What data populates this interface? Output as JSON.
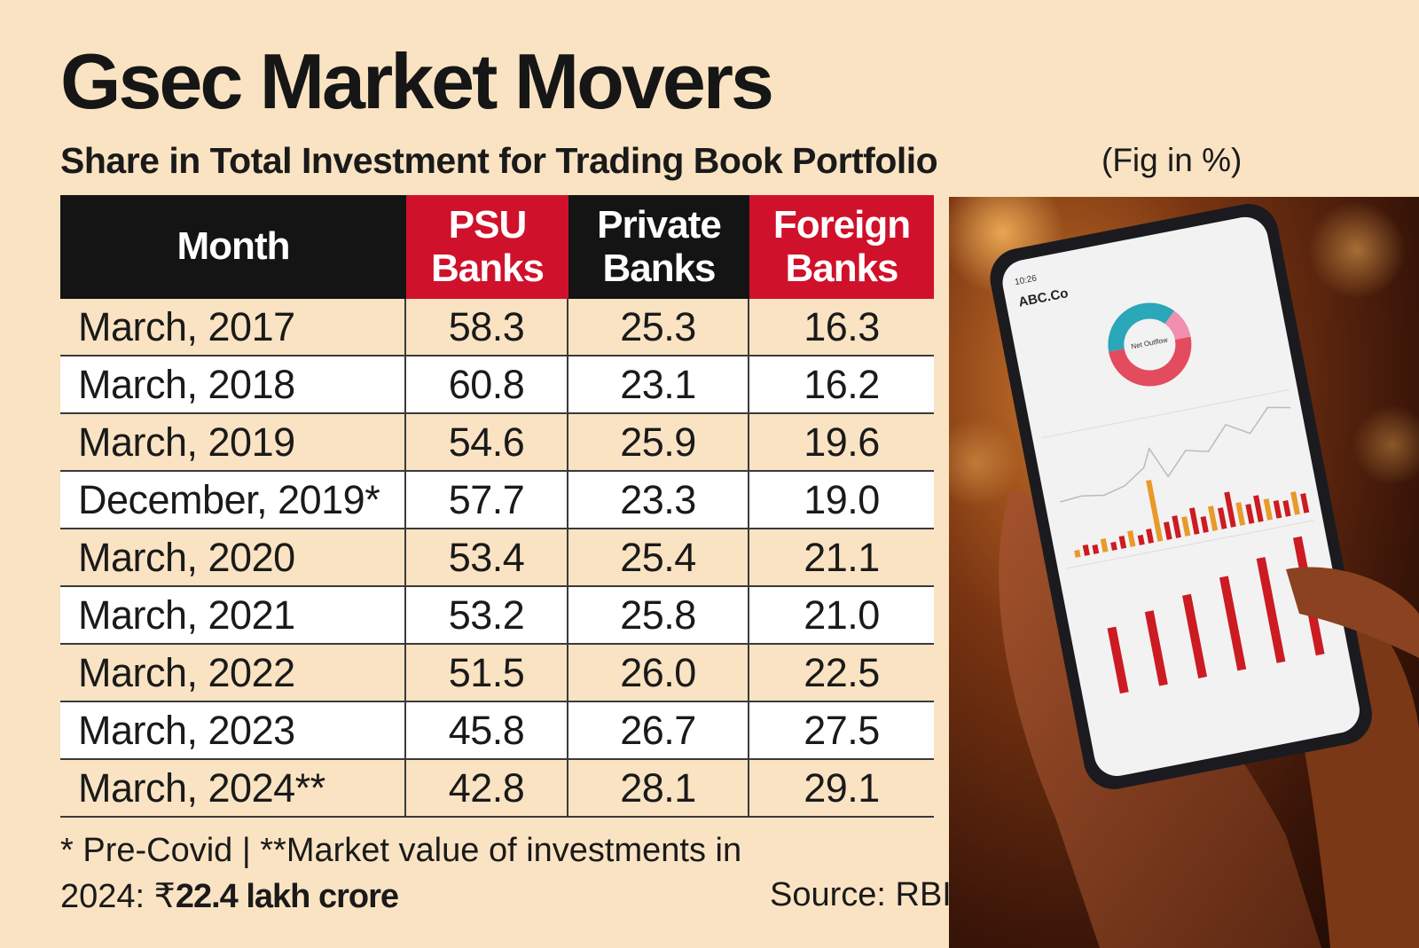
{
  "title": "Gsec Market Movers",
  "subtitle": "Share in Total Investment for Trading Book Portfolio",
  "unit_note": "(Fig in %)",
  "table": {
    "headers": {
      "month": "Month",
      "psu_line1": "PSU",
      "psu_line2": "Banks",
      "private_line1": "Private",
      "private_line2": "Banks",
      "foreign_line1": "Foreign",
      "foreign_line2": "Banks"
    },
    "rows": [
      {
        "month": "March, 2017",
        "psu": "58.3",
        "private": "25.3",
        "foreign": "16.3"
      },
      {
        "month": "March, 2018",
        "psu": "60.8",
        "private": "23.1",
        "foreign": "16.2"
      },
      {
        "month": "March, 2019",
        "psu": "54.6",
        "private": "25.9",
        "foreign": "19.6"
      },
      {
        "month": "December, 2019*",
        "psu": "57.7",
        "private": "23.3",
        "foreign": "19.0"
      },
      {
        "month": "March, 2020",
        "psu": "53.4",
        "private": "25.4",
        "foreign": "21.1"
      },
      {
        "month": "March, 2021",
        "psu": "53.2",
        "private": "25.8",
        "foreign": "21.0"
      },
      {
        "month": "March, 2022",
        "psu": "51.5",
        "private": "26.0",
        "foreign": "22.5"
      },
      {
        "month": "March, 2023",
        "psu": "45.8",
        "private": "26.7",
        "foreign": "27.5"
      },
      {
        "month": "March, 2024**",
        "psu": "42.8",
        "private": "28.1",
        "foreign": "29.1"
      }
    ]
  },
  "footnote": {
    "line1": "* Pre-Covid | **Market value of investments in",
    "line2_prefix": "2024: ₹",
    "line2_bold": "22.4 lakh crore"
  },
  "source": "Source: RBI",
  "photo": {
    "app_name": "ABC.Co",
    "clock": "10:26",
    "donut_center": "Net Outflow"
  },
  "colors": {
    "background": "#f9e3c2",
    "header_dark": "#141414",
    "header_red": "#d0112b",
    "row_alt": "#ffffff"
  },
  "chart_data": {
    "type": "table",
    "title": "Gsec Market Movers",
    "subtitle": "Share in Total Investment for Trading Book Portfolio",
    "unit": "(Fig in %)",
    "columns": [
      "Month",
      "PSU Banks",
      "Private Banks",
      "Foreign Banks"
    ],
    "categories": [
      "March, 2017",
      "March, 2018",
      "March, 2019",
      "December, 2019*",
      "March, 2020",
      "March, 2021",
      "March, 2022",
      "March, 2023",
      "March, 2024**"
    ],
    "series": [
      {
        "name": "PSU Banks",
        "values": [
          58.3,
          60.8,
          54.6,
          57.7,
          53.4,
          53.2,
          51.5,
          45.8,
          42.8
        ]
      },
      {
        "name": "Private Banks",
        "values": [
          25.3,
          23.1,
          25.9,
          23.3,
          25.4,
          25.8,
          26.0,
          26.7,
          28.1
        ]
      },
      {
        "name": "Foreign Banks",
        "values": [
          16.3,
          16.2,
          19.6,
          19.0,
          21.1,
          21.0,
          22.5,
          27.5,
          29.1
        ]
      }
    ],
    "source": "Source: RBI"
  }
}
